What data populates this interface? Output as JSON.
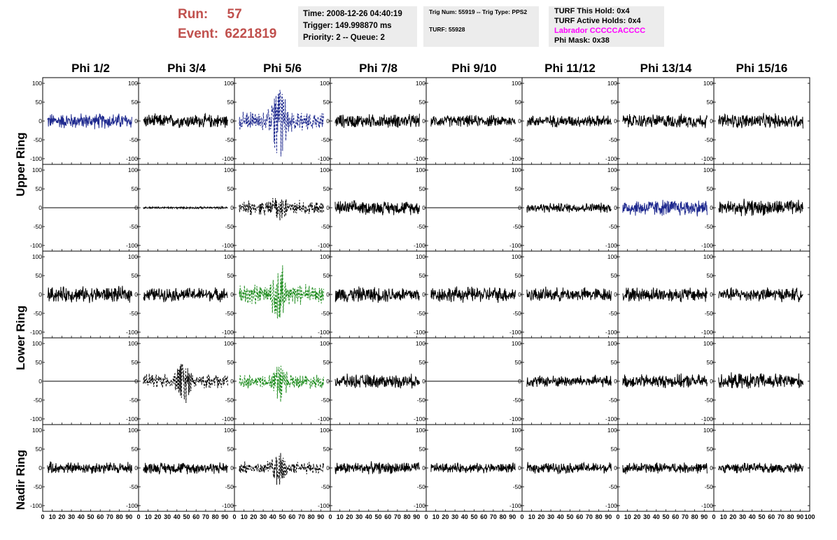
{
  "header": {
    "run_label": "Run:",
    "run_value": "57",
    "event_label": "Event:",
    "event_value": "6221819"
  },
  "box1": {
    "time": "Time: 2008-12-26 04:40:19",
    "trigger": "Trigger: 149.998870 ms",
    "priority": "Priority: 2 -- Queue: 2"
  },
  "box2": {
    "trig_line": "Trig Num: 55919 -- Trig Type: PPS2",
    "turf": "TURF: 55928"
  },
  "box3": {
    "hold": "TURF This Hold: 0x4",
    "active": "TURF Active Holds: 0x4",
    "labrador": "Labrador CCCCCACCCC",
    "phimask": "Phi Mask: 0x38"
  },
  "colors": {
    "run_text": "#c0504d",
    "labrador_text": "#ff00ff",
    "box_bg": "#ececec",
    "trace_black": "#000000",
    "trace_blue": "#1f2a8f",
    "trace_green": "#1a8a1a"
  },
  "phi_titles": [
    "Phi 1/2",
    "Phi 3/4",
    "Phi 5/6",
    "Phi 7/8",
    "Phi 9/10",
    "Phi 11/12",
    "Phi 13/14",
    "Phi 15/16"
  ],
  "ring_labels": {
    "upper": "Upper Ring",
    "lower": "Lower Ring",
    "nadir": "Nadir Ring"
  },
  "chart_data": {
    "type": "line",
    "description_grid": "5 rows x 8 columns of waveform panels",
    "xlim": [
      0,
      100
    ],
    "ylim": [
      -115,
      115
    ],
    "x_ticks": [
      "0",
      "10",
      "20",
      "30",
      "40",
      "50",
      "60",
      "70",
      "80",
      "90",
      "100"
    ],
    "y_ticks": [
      "100",
      "50",
      "0",
      "-50",
      "-100"
    ],
    "panels": [
      [
        {
          "style": "solid",
          "color": "blue",
          "amp": 16,
          "pulse": 0
        },
        {
          "style": "solid",
          "color": "black",
          "amp": 14,
          "pulse": 0
        },
        {
          "style": "dashed",
          "color": "blue",
          "amp": 18,
          "pulse": 100
        },
        {
          "style": "solid",
          "color": "black",
          "amp": 14,
          "pulse": 0
        },
        {
          "style": "solid",
          "color": "black",
          "amp": 12,
          "pulse": 0
        },
        {
          "style": "solid",
          "color": "black",
          "amp": 12,
          "pulse": 0
        },
        {
          "style": "solid",
          "color": "black",
          "amp": 14,
          "pulse": 0
        },
        {
          "style": "solid",
          "color": "black",
          "amp": 15,
          "pulse": 0
        }
      ],
      [
        {
          "style": "flat",
          "color": "black",
          "amp": 0,
          "pulse": 0
        },
        {
          "style": "solid",
          "color": "black",
          "amp": 2,
          "pulse": 0
        },
        {
          "style": "dashed",
          "color": "black",
          "amp": 14,
          "pulse": 25
        },
        {
          "style": "solid",
          "color": "black",
          "amp": 14,
          "pulse": 0
        },
        {
          "style": "flat",
          "color": "black",
          "amp": 0,
          "pulse": 0
        },
        {
          "style": "solid",
          "color": "black",
          "amp": 10,
          "pulse": 0
        },
        {
          "style": "solid",
          "color": "blue",
          "amp": 17,
          "pulse": 0
        },
        {
          "style": "solid",
          "color": "black",
          "amp": 16,
          "pulse": 0
        }
      ],
      [
        {
          "style": "solid",
          "color": "black",
          "amp": 16,
          "pulse": 0
        },
        {
          "style": "solid",
          "color": "black",
          "amp": 14,
          "pulse": 0
        },
        {
          "style": "dashed",
          "color": "green",
          "amp": 20,
          "pulse": 75
        },
        {
          "style": "solid",
          "color": "black",
          "amp": 16,
          "pulse": 0
        },
        {
          "style": "solid",
          "color": "black",
          "amp": 16,
          "pulse": 0
        },
        {
          "style": "solid",
          "color": "black",
          "amp": 14,
          "pulse": 0
        },
        {
          "style": "solid",
          "color": "black",
          "amp": 15,
          "pulse": 0
        },
        {
          "style": "solid",
          "color": "black",
          "amp": 14,
          "pulse": 0
        }
      ],
      [
        {
          "style": "flat",
          "color": "black",
          "amp": 0,
          "pulse": 0
        },
        {
          "style": "dashed",
          "color": "black",
          "amp": 14,
          "pulse": 50
        },
        {
          "style": "dashed",
          "color": "green",
          "amp": 14,
          "pulse": 40
        },
        {
          "style": "solid",
          "color": "black",
          "amp": 14,
          "pulse": 0
        },
        {
          "style": "flat",
          "color": "black",
          "amp": 0,
          "pulse": 0
        },
        {
          "style": "solid",
          "color": "black",
          "amp": 12,
          "pulse": 0
        },
        {
          "style": "solid",
          "color": "black",
          "amp": 14,
          "pulse": 0
        },
        {
          "style": "solid",
          "color": "black",
          "amp": 16,
          "pulse": 0
        }
      ],
      [
        {
          "style": "solid",
          "color": "black",
          "amp": 12,
          "pulse": 0
        },
        {
          "style": "solid",
          "color": "black",
          "amp": 12,
          "pulse": 0
        },
        {
          "style": "dashed",
          "color": "black",
          "amp": 12,
          "pulse": 40
        },
        {
          "style": "solid",
          "color": "black",
          "amp": 12,
          "pulse": 0
        },
        {
          "style": "solid",
          "color": "black",
          "amp": 10,
          "pulse": 0
        },
        {
          "style": "solid",
          "color": "black",
          "amp": 11,
          "pulse": 0
        },
        {
          "style": "solid",
          "color": "black",
          "amp": 11,
          "pulse": 0
        },
        {
          "style": "solid",
          "color": "black",
          "amp": 10,
          "pulse": 0
        }
      ]
    ]
  }
}
